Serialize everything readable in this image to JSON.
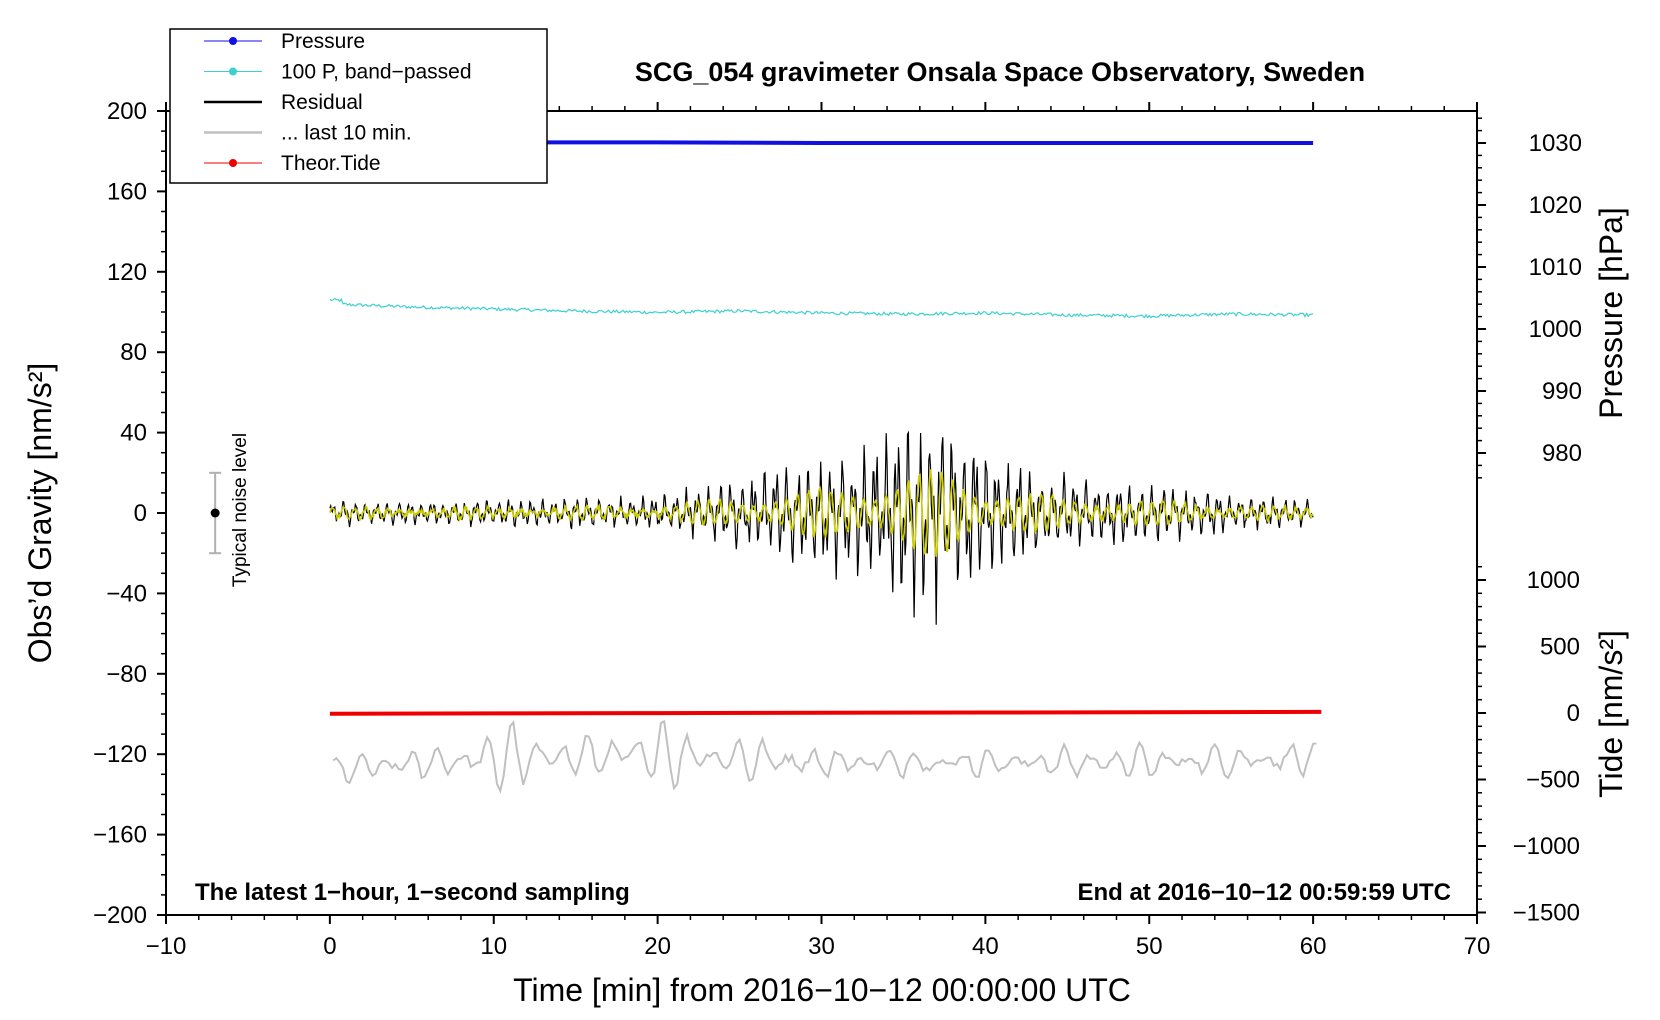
{
  "chart_data": {
    "type": "line",
    "title": "SCG_054 gravimeter Onsala Space Observatory, Sweden",
    "xlabel": "Time [min] from 2016−10−12 00:00:00 UTC",
    "xlim": [
      -10,
      70
    ],
    "xticks": [
      -10,
      0,
      10,
      20,
      30,
      40,
      50,
      60,
      70
    ],
    "xtick_labels": [
      "−10",
      "0",
      "10",
      "20",
      "30",
      "40",
      "50",
      "60",
      "70"
    ],
    "left_axis": {
      "label": "Obs’d Gravity [nm/s²]",
      "ylim": [
        -200,
        200
      ],
      "ticks": [
        -200,
        -160,
        -120,
        -80,
        -40,
        0,
        40,
        80,
        120,
        160,
        200
      ],
      "tick_labels": [
        "−200",
        "−160",
        "−120",
        "−80",
        "−40",
        "0",
        "40",
        "80",
        "120",
        "160",
        "200"
      ]
    },
    "pressure_axis": {
      "label": "Pressure [hPa]",
      "ticks": [
        980,
        990,
        1000,
        1010,
        1020,
        1030
      ],
      "tick_labels": [
        "980",
        "990",
        "1000",
        "1010",
        "1020",
        "1030"
      ]
    },
    "tide_axis": {
      "label": "Tide [nm/s²]",
      "ticks": [
        -1500,
        -1000,
        -500,
        0,
        500,
        1000
      ],
      "tick_labels": [
        "−1500",
        "−1000",
        "−500",
        "0",
        "500",
        "1000"
      ]
    },
    "series": [
      {
        "name": "Pressure",
        "color": "#1010e0",
        "axis": "pressure",
        "x": [
          0,
          10,
          20,
          30,
          40,
          50,
          60
        ],
        "values": [
          1030.1,
          1030.1,
          1030.1,
          1030.0,
          1030.0,
          1030.0,
          1030.0
        ]
      },
      {
        "name": "100 P, band−passed",
        "color": "#3cd0d0",
        "axis": "gravity",
        "x": [
          0,
          5,
          10,
          15,
          20,
          25,
          30,
          35,
          40,
          45,
          50,
          55,
          60
        ],
        "values": [
          104,
          102.5,
          101.5,
          100.5,
          99.8,
          100.5,
          99.5,
          99,
          99.5,
          98.5,
          98,
          99,
          98.5
        ]
      },
      {
        "name": "Residual",
        "color": "#000000",
        "axis": "gravity",
        "x": [
          0,
          5,
          10,
          15,
          20,
          25,
          28,
          32,
          35,
          37.5,
          40,
          45,
          50,
          55,
          60
        ],
        "amplitude": [
          6,
          6,
          7,
          8,
          8,
          18,
          24,
          32,
          45,
          52,
          32,
          18,
          15,
          10,
          6
        ]
      },
      {
        "name": "... last 10 min.",
        "color": "#c0c0c0",
        "axis": "gravity",
        "x": [
          0,
          10,
          20,
          30,
          40,
          50,
          60
        ],
        "values": [
          -128,
          -122,
          -120,
          -124,
          -124,
          -124,
          -122
        ]
      },
      {
        "name": "Theor.Tide",
        "color": "#ee0000",
        "axis": "tide",
        "x": [
          0,
          10,
          20,
          30,
          40,
          50,
          60
        ],
        "values": [
          -5,
          -3,
          -1,
          2,
          4,
          6,
          8
        ]
      }
    ],
    "annotations": {
      "noise_label": "Typical noise level",
      "noise_center": 0,
      "noise_range": [
        -20,
        20
      ],
      "bottom_left": "The latest 1−hour, 1−second sampling",
      "bottom_right": "End at 2016−10−12 00:59:59 UTC"
    }
  }
}
